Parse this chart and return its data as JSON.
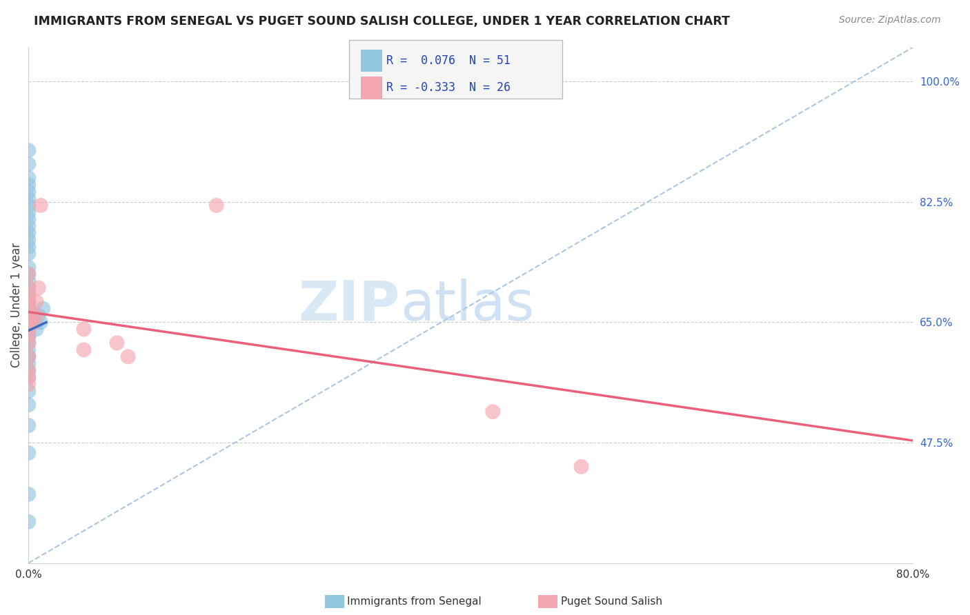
{
  "title": "IMMIGRANTS FROM SENEGAL VS PUGET SOUND SALISH COLLEGE, UNDER 1 YEAR CORRELATION CHART",
  "source": "Source: ZipAtlas.com",
  "ylabel": "College, Under 1 year",
  "xlim": [
    0.0,
    0.8
  ],
  "ylim": [
    0.3,
    1.05
  ],
  "ytick_labels_right": [
    "100.0%",
    "82.5%",
    "65.0%",
    "47.5%"
  ],
  "ytick_positions_right": [
    1.0,
    0.825,
    0.65,
    0.475
  ],
  "legend_R1": "R =  0.076",
  "legend_N1": "N = 51",
  "legend_R2": "R = -0.333",
  "legend_N2": "N = 26",
  "color_blue": "#92C5DE",
  "color_pink": "#F4A6B0",
  "line_blue": "#3A6BBF",
  "line_pink": "#E8607A",
  "line_dashed_color": "#A0C0E0",
  "blue_scatter_x": [
    0.0,
    0.0,
    0.0,
    0.0,
    0.0,
    0.0,
    0.0,
    0.0,
    0.0,
    0.0,
    0.0,
    0.0,
    0.0,
    0.0,
    0.0,
    0.0,
    0.0,
    0.0,
    0.0,
    0.0,
    0.0,
    0.0,
    0.0,
    0.0,
    0.0,
    0.0,
    0.0,
    0.0,
    0.0,
    0.0,
    0.0,
    0.0,
    0.0,
    0.0,
    0.0,
    0.0,
    0.0,
    0.0,
    0.0,
    0.0,
    0.0,
    0.0,
    0.0,
    0.0,
    0.0,
    0.005,
    0.005,
    0.007,
    0.009,
    0.011,
    0.013
  ],
  "blue_scatter_y": [
    0.36,
    0.4,
    0.46,
    0.5,
    0.53,
    0.55,
    0.57,
    0.58,
    0.59,
    0.6,
    0.6,
    0.61,
    0.62,
    0.63,
    0.63,
    0.64,
    0.64,
    0.65,
    0.65,
    0.66,
    0.66,
    0.67,
    0.67,
    0.68,
    0.68,
    0.69,
    0.69,
    0.7,
    0.71,
    0.72,
    0.73,
    0.75,
    0.76,
    0.77,
    0.78,
    0.79,
    0.8,
    0.81,
    0.82,
    0.83,
    0.84,
    0.85,
    0.86,
    0.88,
    0.9,
    0.65,
    0.66,
    0.64,
    0.66,
    0.65,
    0.67
  ],
  "pink_scatter_x": [
    0.0,
    0.0,
    0.0,
    0.0,
    0.0,
    0.0,
    0.0,
    0.0,
    0.0,
    0.0,
    0.0,
    0.0,
    0.0,
    0.0,
    0.005,
    0.007,
    0.007,
    0.009,
    0.011,
    0.42,
    0.5,
    0.17,
    0.08,
    0.05,
    0.05,
    0.09
  ],
  "pink_scatter_y": [
    0.56,
    0.57,
    0.58,
    0.6,
    0.62,
    0.63,
    0.64,
    0.65,
    0.66,
    0.67,
    0.68,
    0.69,
    0.7,
    0.72,
    0.65,
    0.66,
    0.68,
    0.7,
    0.82,
    0.52,
    0.44,
    0.82,
    0.62,
    0.61,
    0.64,
    0.6
  ],
  "blue_line_x": [
    0.0,
    0.016
  ],
  "blue_line_y": [
    0.638,
    0.648
  ],
  "pink_line_x": [
    0.0,
    0.8
  ],
  "pink_line_y": [
    0.665,
    0.478
  ],
  "dashed_line_x": [
    0.0,
    0.8
  ],
  "dashed_line_y": [
    0.3,
    1.05
  ],
  "title_color": "#222222",
  "source_color": "#888888",
  "right_label_color": "#3366CC",
  "grid_color": "#CCCCCC",
  "watermark_zip_color": "#C8DFF0",
  "watermark_atlas_color": "#B0CEEA"
}
